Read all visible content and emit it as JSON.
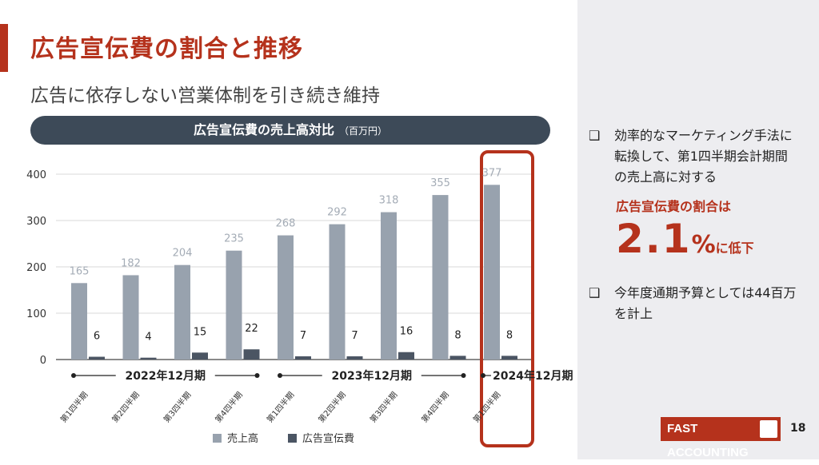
{
  "slide": {
    "title": "広告宣伝費の割合と推移",
    "subtitle": "広告に依存しない営業体制を引き続き維持",
    "chart_banner": "広告宣伝費の売上高対比",
    "chart_unit": "（百万円）",
    "page_number": "18",
    "brand": "FAST ACCOUNTING"
  },
  "right": {
    "bullet_mark": "❑",
    "bullet1": "効率的なマーケティング手法に転換して、第1四半期会計期間の売上高に対する",
    "highlight_label": "広告宣伝費の割合は",
    "big_number": "2.1",
    "percent": "%",
    "low_text": "に低下",
    "bullet2": "今年度通期予算としては44百万を計上"
  },
  "chart_data": {
    "type": "bar",
    "title": "広告宣伝費の売上高対比",
    "unit": "（百万円）",
    "categories": [
      "第1四半期",
      "第2四半期",
      "第3四半期",
      "第4四半期",
      "第1四半期",
      "第2四半期",
      "第3四半期",
      "第4四半期",
      "第1四半期"
    ],
    "series": [
      {
        "name": "売上高",
        "values": [
          165,
          182,
          204,
          235,
          268,
          292,
          318,
          355,
          377
        ],
        "color": "#98a2ae"
      },
      {
        "name": "広告宣伝費",
        "values": [
          6,
          4,
          15,
          22,
          7,
          7,
          16,
          8,
          8
        ],
        "color": "#4b5563"
      }
    ],
    "ylim": [
      0,
      400
    ],
    "yticks": [
      0,
      100,
      200,
      300,
      400
    ],
    "groups": [
      {
        "label": "2022年12月期",
        "start": 0,
        "end": 3
      },
      {
        "label": "2023年12月期",
        "start": 4,
        "end": 7
      },
      {
        "label": "2024年12月期",
        "start": 8,
        "end": 8
      }
    ],
    "highlight_index": 8,
    "grid": true,
    "legend": "bottom"
  }
}
